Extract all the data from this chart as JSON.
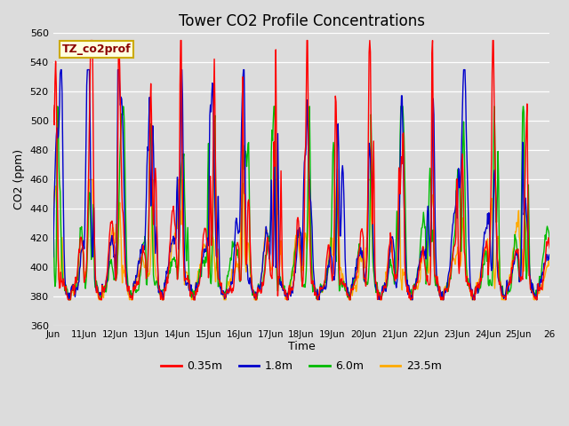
{
  "title": "Tower CO2 Profile Concentrations",
  "xlabel": "Time",
  "ylabel": "CO2 (ppm)",
  "ylim": [
    360,
    560
  ],
  "yticks": [
    360,
    380,
    400,
    420,
    440,
    460,
    480,
    500,
    520,
    540,
    560
  ],
  "colors": {
    "0.35m": "#ff0000",
    "1.8m": "#0000cc",
    "6.0m": "#00bb00",
    "23.5m": "#ffaa00"
  },
  "legend_label": "TZ_co2prof",
  "plot_bg_color": "#dcdcdc",
  "fig_bg_color": "#dcdcdc",
  "line_width": 1.0,
  "x_start": 10,
  "x_end": 26,
  "pts_per_day": 48,
  "n_days": 16,
  "base_co2": 385,
  "x_tick_positions": [
    10,
    11,
    12,
    13,
    14,
    15,
    16,
    17,
    18,
    19,
    20,
    21,
    22,
    23,
    24,
    25,
    26
  ],
  "x_tick_labels": [
    "Jun",
    "11Jun",
    "12Jun",
    "13Jun",
    "14Jun",
    "15Jun",
    "16Jun",
    "17Jun",
    "18Jun",
    "19Jun",
    "20Jun",
    "21Jun",
    "22Jun",
    "23Jun",
    "24Jun",
    "25Jun",
    "26"
  ]
}
